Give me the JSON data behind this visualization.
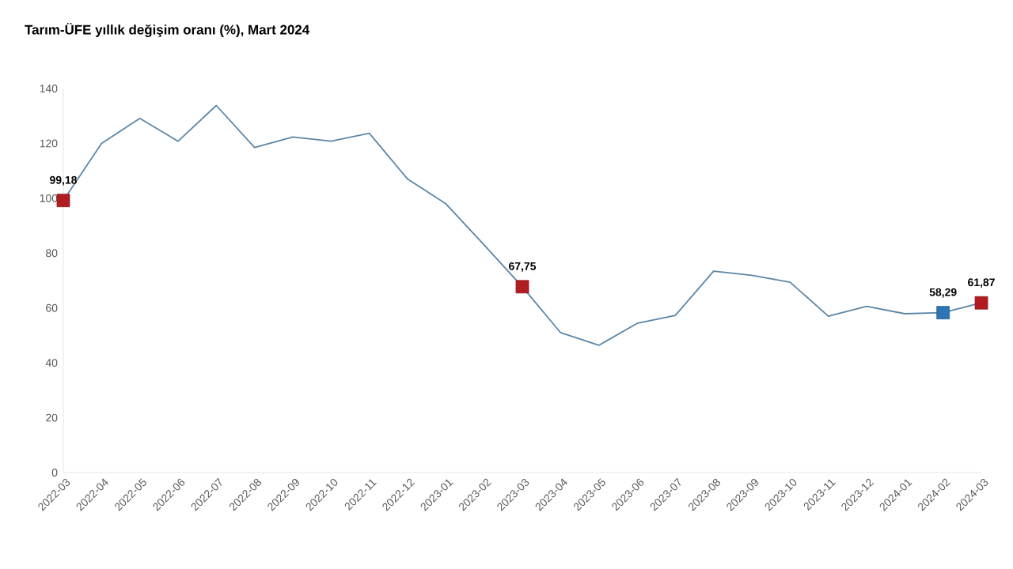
{
  "chart_data": {
    "type": "line",
    "title": "Tarım-ÜFE yıllık değişim oranı (%), Mart 2024",
    "categories": [
      "2022-03",
      "2022-04",
      "2022-05",
      "2022-06",
      "2022-07",
      "2022-08",
      "2022-09",
      "2022-10",
      "2022-11",
      "2022-12",
      "2023-01",
      "2023-02",
      "2023-03",
      "2023-04",
      "2023-05",
      "2023-06",
      "2023-07",
      "2023-08",
      "2023-09",
      "2023-10",
      "2023-11",
      "2023-12",
      "2024-01",
      "2024-02",
      "2024-03"
    ],
    "series": [
      {
        "color": "#5b86a8",
        "line_style": "solid",
        "marker": "none",
        "values": [
          99.18,
          120.0,
          129.1,
          120.8,
          133.8,
          118.5,
          122.3,
          120.8,
          123.7,
          107.0,
          98.0,
          83.0,
          67.75,
          51.0,
          46.4,
          54.4,
          57.3,
          73.4,
          71.9,
          69.4,
          57.0,
          60.6,
          57.9,
          58.29,
          61.87
        ]
      },
      {
        "type": "scatter",
        "marker": "square",
        "values": [
          99.18,
          null,
          null,
          null,
          null,
          null,
          null,
          null,
          null,
          null,
          null,
          null,
          67.75,
          null,
          null,
          null,
          null,
          null,
          null,
          null,
          null,
          null,
          null,
          58.29,
          61.87
        ],
        "colors": [
          "#b01c20",
          null,
          null,
          null,
          null,
          null,
          null,
          null,
          null,
          null,
          null,
          null,
          "#b01c20",
          null,
          null,
          null,
          null,
          null,
          null,
          null,
          null,
          null,
          null,
          "#2e75b6",
          "#b01c20"
        ],
        "value_labels": [
          "99,18",
          null,
          null,
          null,
          null,
          null,
          null,
          null,
          null,
          null,
          null,
          null,
          "67,75",
          null,
          null,
          null,
          null,
          null,
          null,
          null,
          null,
          null,
          null,
          "58,29",
          "61,87"
        ]
      }
    ],
    "ylim": [
      0,
      140
    ],
    "yticks": [
      0,
      20,
      40,
      60,
      80,
      100,
      120,
      140
    ],
    "grid": false
  }
}
